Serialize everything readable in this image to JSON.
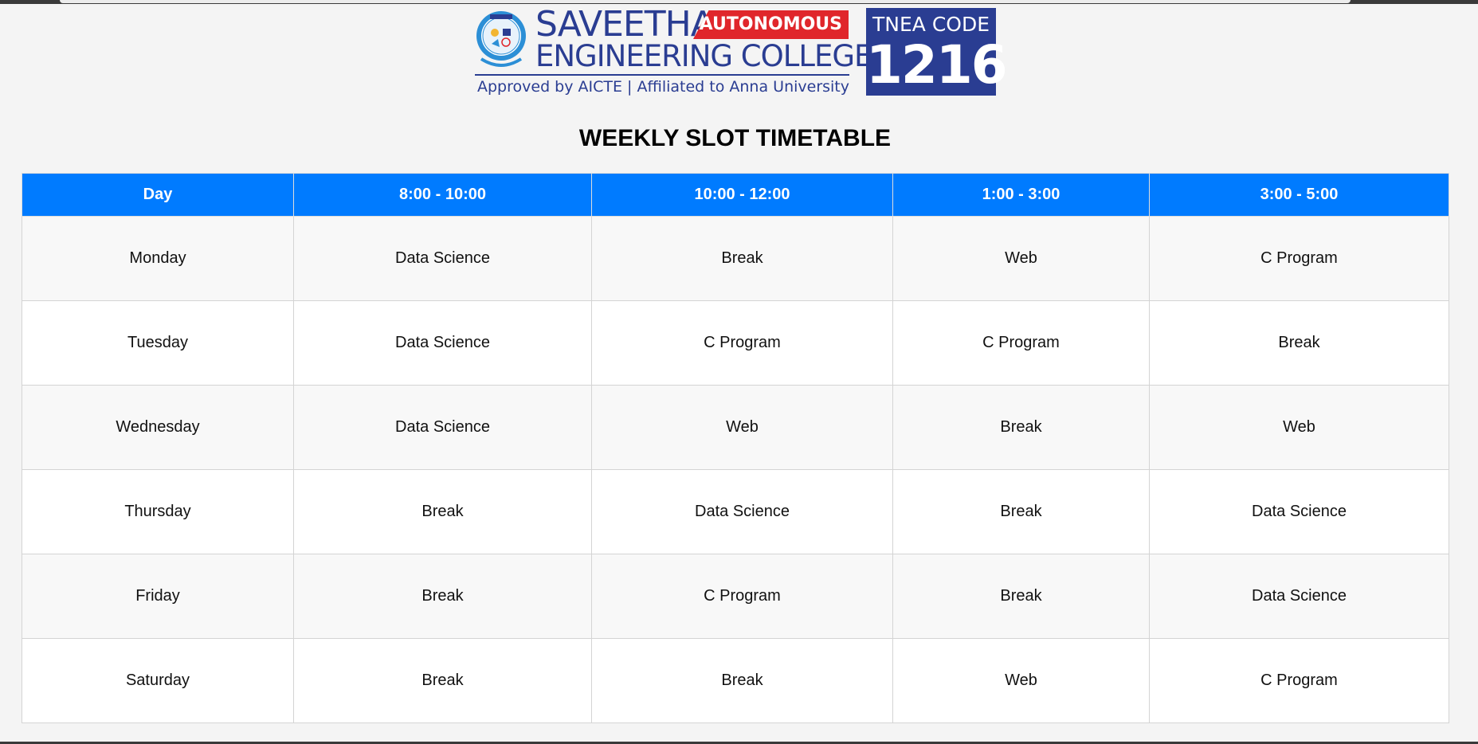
{
  "logo": {
    "name_main": "SAVEETHA",
    "badge": "AUTONOMOUS",
    "name_sub": "ENGINEERING COLLEGE",
    "tagline": "Approved by AICTE  |  Affiliated to Anna University",
    "tnea_label": "TNEA CODE",
    "tnea_code": "1216",
    "colors": {
      "brand_blue": "#2a3d92",
      "badge_red": "#e0262b"
    }
  },
  "title": "WEEKLY SLOT TIMETABLE",
  "table": {
    "header_color": "#007bff",
    "headers": [
      "Day",
      "8:00 - 10:00",
      "10:00 - 12:00",
      "1:00 - 3:00",
      "3:00 - 5:00"
    ],
    "rows": [
      [
        "Monday",
        "Data Science",
        "Break",
        "Web",
        "C Program"
      ],
      [
        "Tuesday",
        "Data Science",
        "C Program",
        "C Program",
        "Break"
      ],
      [
        "Wednesday",
        "Data Science",
        "Web",
        "Break",
        "Web"
      ],
      [
        "Thursday",
        "Break",
        "Data Science",
        "Break",
        "Data Science"
      ],
      [
        "Friday",
        "Break",
        "C Program",
        "Break",
        "Data Science"
      ],
      [
        "Saturday",
        "Break",
        "Break",
        "Web",
        "C Program"
      ]
    ]
  }
}
